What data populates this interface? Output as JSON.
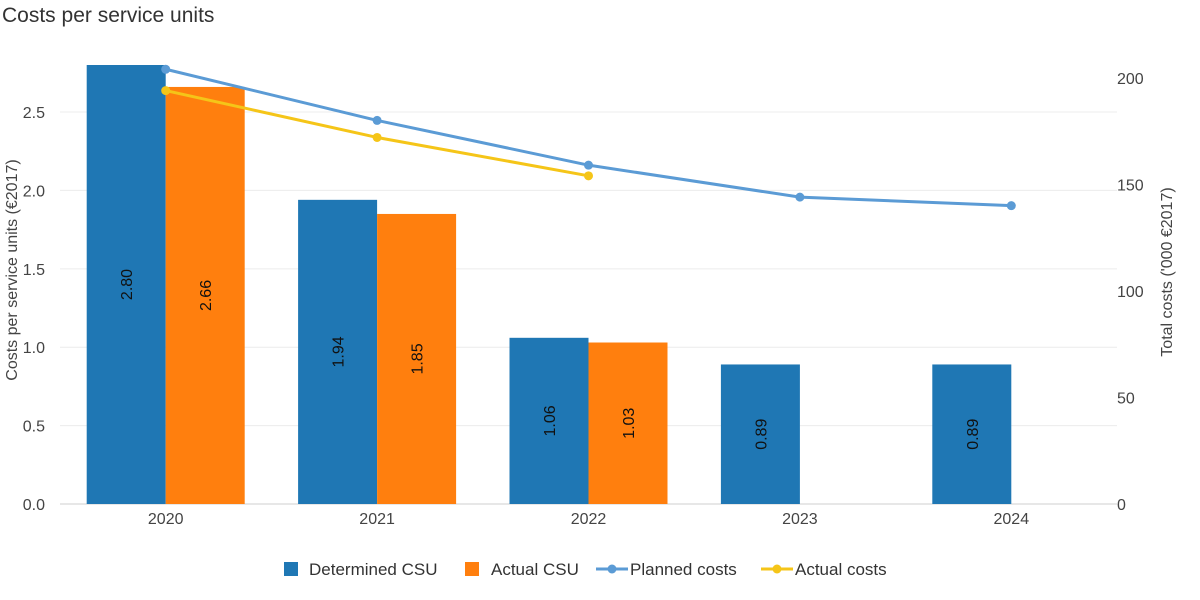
{
  "title": "Costs per service units",
  "chart_data": {
    "type": "bar",
    "title": "Costs per service units",
    "categories": [
      "2020",
      "2021",
      "2022",
      "2023",
      "2024"
    ],
    "series": [
      {
        "name": "Determined CSU",
        "kind": "bar",
        "axis": "left",
        "color": "#1f77b4",
        "values": [
          2.8,
          1.94,
          1.06,
          0.89,
          0.89
        ],
        "labels": [
          "2.80",
          "1.94",
          "1.06",
          "0.89",
          "0.89"
        ]
      },
      {
        "name": "Actual CSU",
        "kind": "bar",
        "axis": "left",
        "color": "#ff7f0e",
        "values": [
          2.66,
          1.85,
          1.03,
          null,
          null
        ],
        "labels": [
          "2.66",
          "1.85",
          "1.03",
          "",
          ""
        ]
      },
      {
        "name": "Planned costs",
        "kind": "line",
        "axis": "right",
        "color": "#5b9bd5",
        "values": [
          204,
          180,
          159,
          144,
          140
        ]
      },
      {
        "name": "Actual costs",
        "kind": "line",
        "axis": "right",
        "color": "#f5c518",
        "values": [
          194,
          172,
          154,
          null,
          null
        ]
      }
    ],
    "ylabel": "Costs per service units (€2017)",
    "y2label": "Total costs ('000 €2017)",
    "ylim": [
      0,
      2.8
    ],
    "y2lim": [
      0,
      206
    ],
    "yticks": [
      "0.0",
      "0.5",
      "1.0",
      "1.5",
      "2.0",
      "2.5"
    ],
    "ytick_values": [
      0,
      0.5,
      1.0,
      1.5,
      2.0,
      2.5
    ],
    "y2ticks": [
      "0",
      "50",
      "100",
      "150",
      "200"
    ],
    "y2tick_values": [
      0,
      50,
      100,
      150,
      200
    ],
    "grid": true,
    "legend_position": "bottom-center"
  }
}
